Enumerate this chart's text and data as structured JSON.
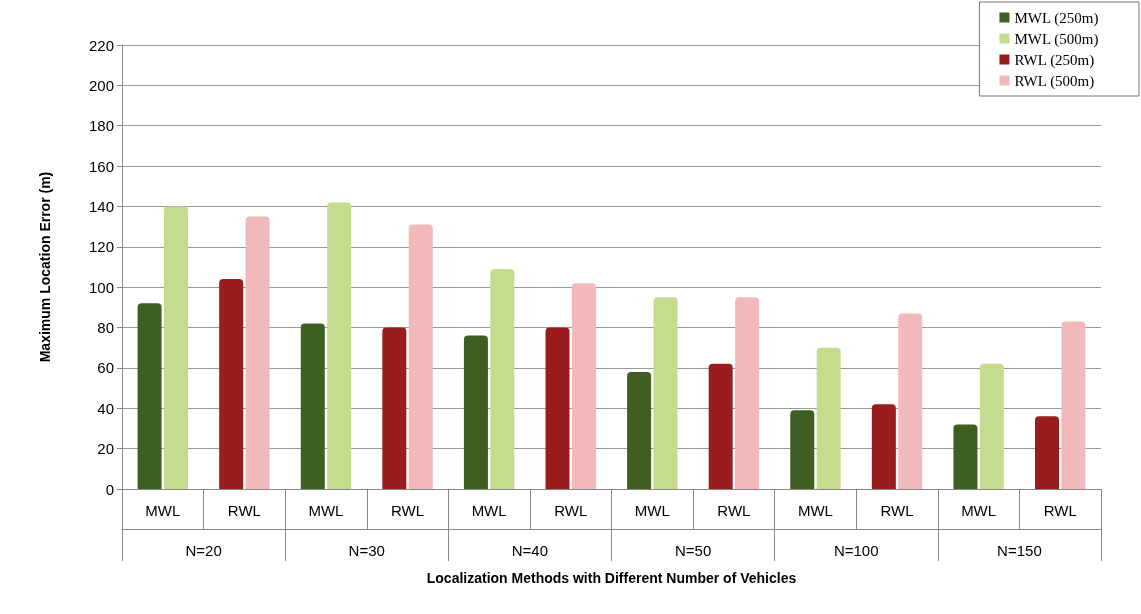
{
  "chart_data": {
    "type": "bar",
    "xlabel": "Localization Methods with Different Number of Vehicles",
    "ylabel": "Maximum Location Error (m)",
    "categories": [
      "MWL",
      "RWL",
      "MWL",
      "RWL",
      "MWL",
      "RWL",
      "MWL",
      "RWL",
      "MWL",
      "RWL",
      "MWL",
      "RWL"
    ],
    "annotations": [
      "N=20",
      "N=30",
      "N=40",
      "N=50",
      "N=100",
      "N=150"
    ],
    "series": [
      {
        "name": "MWL (250m)",
        "color": "#3f5e22",
        "values": [
          92,
          null,
          82,
          null,
          76,
          null,
          58,
          null,
          39,
          null,
          32,
          null
        ]
      },
      {
        "name": "MWL (500m)",
        "color": "#c3dc8e",
        "values": [
          140,
          null,
          142,
          null,
          109,
          null,
          95,
          null,
          70,
          null,
          62,
          null
        ]
      },
      {
        "name": "RWL (250m)",
        "color": "#9a1d1d",
        "values": [
          null,
          104,
          null,
          80,
          null,
          80,
          null,
          62,
          null,
          42,
          null,
          36
        ]
      },
      {
        "name": "RWL (500m)",
        "color": "#f1b9b9",
        "values": [
          null,
          135,
          null,
          131,
          null,
          102,
          null,
          95,
          null,
          87,
          null,
          83
        ]
      }
    ],
    "ylim": [
      0,
      220
    ],
    "yticks": [
      0,
      20,
      40,
      60,
      80,
      100,
      120,
      140,
      160,
      180,
      200,
      220
    ],
    "grid": "y",
    "legend": "top right"
  }
}
